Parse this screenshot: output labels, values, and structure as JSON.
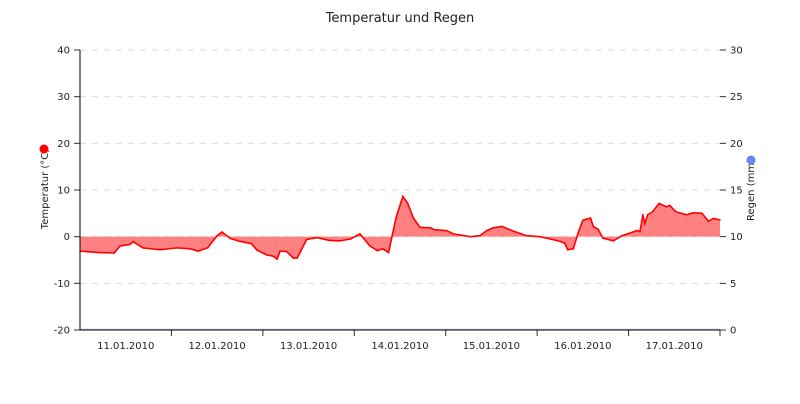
{
  "chart_data": {
    "type": "area",
    "title": "Temperatur und Regen",
    "xlabel": "",
    "x_range": [
      "2010-01-11 00:00",
      "2010-01-18 00:00"
    ],
    "x_tick_labels": [
      "11.01.2010",
      "12.01.2010",
      "13.01.2010",
      "14.01.2010",
      "15.01.2010",
      "16.01.2010",
      "17.01.2010"
    ],
    "y_left": {
      "label": "Temperatur (°C)",
      "range": [
        -20,
        40
      ],
      "ticks": [
        "-20",
        "-10",
        "0",
        "10",
        "20",
        "30",
        "40"
      ]
    },
    "y_right": {
      "label": "Regen (mm)",
      "range": [
        0,
        30
      ],
      "ticks": [
        "0",
        "5",
        "10",
        "15",
        "20",
        "25",
        "30"
      ]
    },
    "grid": "horizontal dashed",
    "legend": "dots beside axis labels",
    "series": [
      {
        "name": "Temperatur (°C)",
        "axis": "left",
        "color": "#ff0000",
        "fill": "#ff8080",
        "points": [
          [
            "2010-01-11 00:00",
            -3.1
          ],
          [
            "2010-01-11 05:00",
            -3.4
          ],
          [
            "2010-01-11 09:00",
            -3.5
          ],
          [
            "2010-01-11 10:30",
            -2.0
          ],
          [
            "2010-01-11 13:00",
            -1.7
          ],
          [
            "2010-01-11 14:00",
            -1.1
          ],
          [
            "2010-01-11 16:30",
            -2.4
          ],
          [
            "2010-01-11 21:00",
            -2.8
          ],
          [
            "2010-01-12 01:30",
            -2.4
          ],
          [
            "2010-01-12 05:00",
            -2.6
          ],
          [
            "2010-01-12 07:00",
            -3.1
          ],
          [
            "2010-01-12 09:30",
            -2.4
          ],
          [
            "2010-01-12 12:00",
            0.2
          ],
          [
            "2010-01-12 13:15",
            1.0
          ],
          [
            "2010-01-12 15:30",
            -0.4
          ],
          [
            "2010-01-12 18:00",
            -1.0
          ],
          [
            "2010-01-12 21:00",
            -1.5
          ],
          [
            "2010-01-12 22:30",
            -2.9
          ],
          [
            "2010-01-13 01:00",
            -3.9
          ],
          [
            "2010-01-13 02:45",
            -4.2
          ],
          [
            "2010-01-13 03:45",
            -4.8
          ],
          [
            "2010-01-13 04:30",
            -3.1
          ],
          [
            "2010-01-13 06:15",
            -3.2
          ],
          [
            "2010-01-13 08:00",
            -4.6
          ],
          [
            "2010-01-13 09:00",
            -4.6
          ],
          [
            "2010-01-13 11:30",
            -0.6
          ],
          [
            "2010-01-13 14:15",
            -0.2
          ],
          [
            "2010-01-13 17:30",
            -0.8
          ],
          [
            "2010-01-13 20:15",
            -0.9
          ],
          [
            "2010-01-13 23:00",
            -0.5
          ],
          [
            "2010-01-14 01:30",
            0.6
          ],
          [
            "2010-01-14 04:00",
            -1.9
          ],
          [
            "2010-01-14 06:00",
            -3.0
          ],
          [
            "2010-01-14 07:30",
            -2.6
          ],
          [
            "2010-01-14 09:00",
            -3.4
          ],
          [
            "2010-01-14 10:00",
            0.4
          ],
          [
            "2010-01-14 11:00",
            4.2
          ],
          [
            "2010-01-14 12:45",
            8.6
          ],
          [
            "2010-01-14 14:00",
            7.2
          ],
          [
            "2010-01-14 15:30",
            4.0
          ],
          [
            "2010-01-14 17:15",
            2.0
          ],
          [
            "2010-01-14 20:00",
            1.9
          ],
          [
            "2010-01-14 21:00",
            1.5
          ],
          [
            "2010-01-15 00:15",
            1.3
          ],
          [
            "2010-01-15 02:00",
            0.6
          ],
          [
            "2010-01-15 06:30",
            0.0
          ],
          [
            "2010-01-15 09:00",
            0.2
          ],
          [
            "2010-01-15 10:45",
            1.3
          ],
          [
            "2010-01-15 12:30",
            1.9
          ],
          [
            "2010-01-15 14:45",
            2.2
          ],
          [
            "2010-01-15 18:00",
            1.1
          ],
          [
            "2010-01-15 21:15",
            0.2
          ],
          [
            "2010-01-16 00:45",
            0.0
          ],
          [
            "2010-01-16 03:30",
            -0.5
          ],
          [
            "2010-01-16 06:00",
            -1.0
          ],
          [
            "2010-01-16 07:15",
            -1.4
          ],
          [
            "2010-01-16 08:00",
            -2.8
          ],
          [
            "2010-01-16 09:30",
            -2.6
          ],
          [
            "2010-01-16 10:45",
            0.8
          ],
          [
            "2010-01-16 12:00",
            3.5
          ],
          [
            "2010-01-16 14:00",
            4.0
          ],
          [
            "2010-01-16 14:45",
            2.2
          ],
          [
            "2010-01-16 16:00",
            1.6
          ],
          [
            "2010-01-16 17:15",
            -0.3
          ],
          [
            "2010-01-16 20:00",
            -0.9
          ],
          [
            "2010-01-16 22:15",
            0.2
          ],
          [
            "2010-01-17 02:15",
            1.3
          ],
          [
            "2010-01-17 03:00",
            1.1
          ],
          [
            "2010-01-17 03:45",
            4.7
          ],
          [
            "2010-01-17 04:15",
            2.8
          ],
          [
            "2010-01-17 05:00",
            4.7
          ],
          [
            "2010-01-17 06:15",
            5.3
          ],
          [
            "2010-01-17 08:00",
            7.1
          ],
          [
            "2010-01-17 10:00",
            6.4
          ],
          [
            "2010-01-17 10:45",
            6.7
          ],
          [
            "2010-01-17 12:30",
            5.3
          ],
          [
            "2010-01-17 15:15",
            4.7
          ],
          [
            "2010-01-17 17:00",
            5.1
          ],
          [
            "2010-01-17 19:15",
            5.0
          ],
          [
            "2010-01-17 21:00",
            3.3
          ],
          [
            "2010-01-17 22:15",
            3.9
          ],
          [
            "2010-01-18 00:00",
            3.6
          ]
        ]
      },
      {
        "name": "Regen (mm)",
        "axis": "right",
        "color": "#6688ee",
        "points": [
          [
            "2010-01-11 00:00",
            0
          ],
          [
            "2010-01-18 00:00",
            0
          ]
        ]
      }
    ]
  }
}
